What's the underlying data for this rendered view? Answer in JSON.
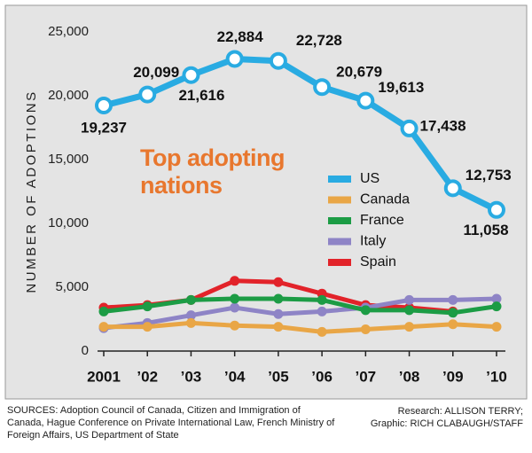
{
  "chart_data": {
    "type": "line",
    "title": "Top adopting nations",
    "ylabel": "NUMBER OF ADOPTIONS",
    "categories": [
      "2001",
      "’02",
      "’03",
      "’04",
      "’05",
      "’06",
      "’07",
      "’08",
      "’09",
      "’10"
    ],
    "series": [
      {
        "name": "US",
        "color": "#29abe2",
        "values": [
          19237,
          20099,
          21616,
          22884,
          22728,
          20679,
          19613,
          17438,
          12753,
          11058
        ],
        "value_labels": [
          "19,237",
          "20,099",
          "21,616",
          "22,884",
          "22,728",
          "20,679",
          "19,613",
          "17,438",
          "12,753",
          "11,058"
        ]
      },
      {
        "name": "Canada",
        "color": "#e9a646",
        "values": [
          1900,
          1900,
          2200,
          2000,
          1900,
          1500,
          1700,
          1900,
          2100,
          1900
        ]
      },
      {
        "name": "France",
        "color": "#1c9c45",
        "values": [
          3100,
          3500,
          4000,
          4100,
          4100,
          4000,
          3200,
          3200,
          3000,
          3500
        ]
      },
      {
        "name": "Italy",
        "color": "#8e84c6",
        "values": [
          1800,
          2200,
          2800,
          3400,
          2900,
          3100,
          3400,
          4000,
          4000,
          4100
        ]
      },
      {
        "name": "Spain",
        "color": "#e2232a",
        "values": [
          3400,
          3600,
          4000,
          5500,
          5400,
          4500,
          3600,
          3400,
          3100,
          null
        ]
      }
    ],
    "ylim": [
      0,
      25000
    ],
    "yticks": [
      0,
      {
        "value": 5000,
        "label": "5,000"
      },
      {
        "value": 10000,
        "label": "10,000"
      },
      {
        "value": 15000,
        "label": "15,000"
      },
      {
        "value": 20000,
        "label": "20,000"
      },
      {
        "value": 25000,
        "label": "25,000"
      }
    ],
    "grid": false,
    "sources": "SOURCES:  Adoption Council of Canada, Citizen and Immigration of Canada, Hague Conference on Private International Law, French Ministry of Foreign Affairs, US Department of State",
    "credits": [
      "Research: ALLISON TERRY;",
      "Graphic: RICH CLABAUGH/STAFF"
    ]
  }
}
